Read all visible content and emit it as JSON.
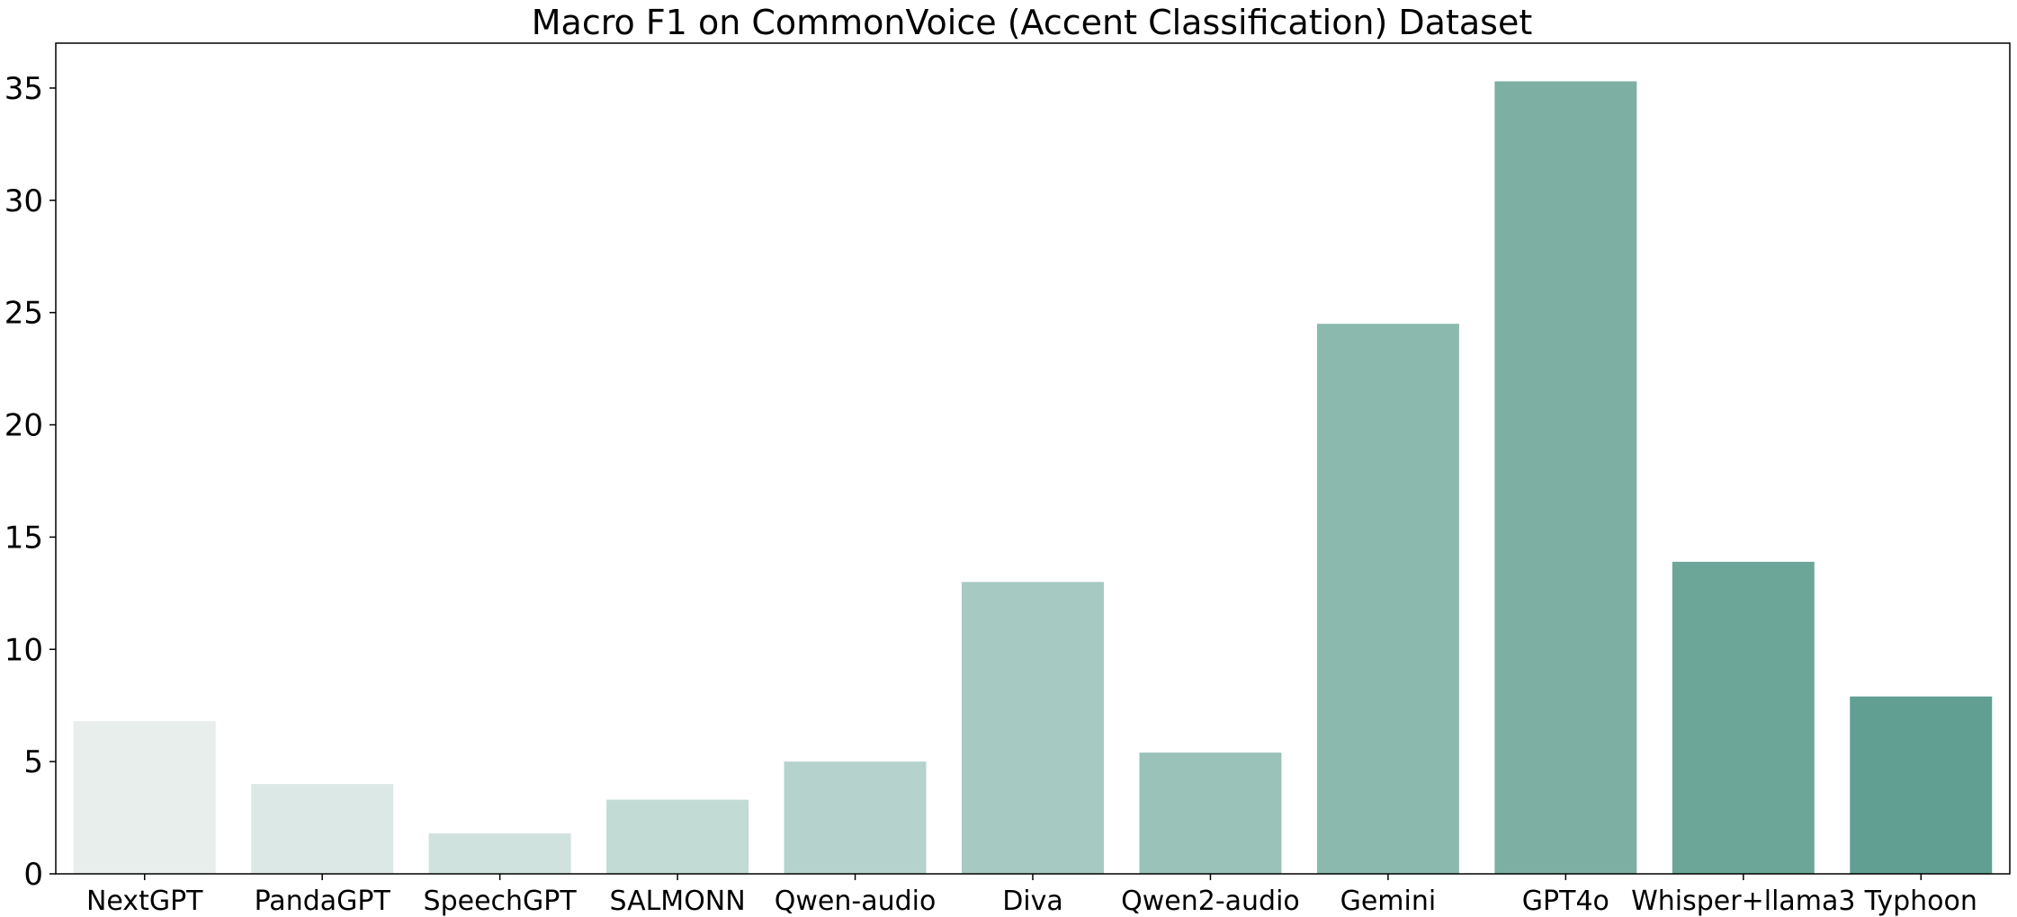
{
  "chart_data": {
    "type": "bar",
    "title": "Macro F1 on CommonVoice (Accent Classification) Dataset",
    "xlabel": "",
    "ylabel": "",
    "categories": [
      "NextGPT",
      "PandaGPT",
      "SpeechGPT",
      "SALMONN",
      "Qwen-audio",
      "Diva",
      "Qwen2-audio",
      "Gemini",
      "GPT4o",
      "Whisper+llama3",
      "Typhoon"
    ],
    "values": [
      6.8,
      4.0,
      1.8,
      3.3,
      5.0,
      13.0,
      5.4,
      24.5,
      35.3,
      13.9,
      7.9
    ],
    "colors": [
      "#e8eeec",
      "#dce8e5",
      "#d0e2dd",
      "#c3dbd5",
      "#b5d3cc",
      "#a6c9c1",
      "#9ac2b9",
      "#8bb9ae",
      "#7db0a3",
      "#6ca699",
      "#609f92"
    ],
    "ylim": [
      0,
      37
    ],
    "yticks": [
      0,
      5,
      10,
      15,
      20,
      25,
      30,
      35
    ],
    "grid": false,
    "legend": "none"
  }
}
